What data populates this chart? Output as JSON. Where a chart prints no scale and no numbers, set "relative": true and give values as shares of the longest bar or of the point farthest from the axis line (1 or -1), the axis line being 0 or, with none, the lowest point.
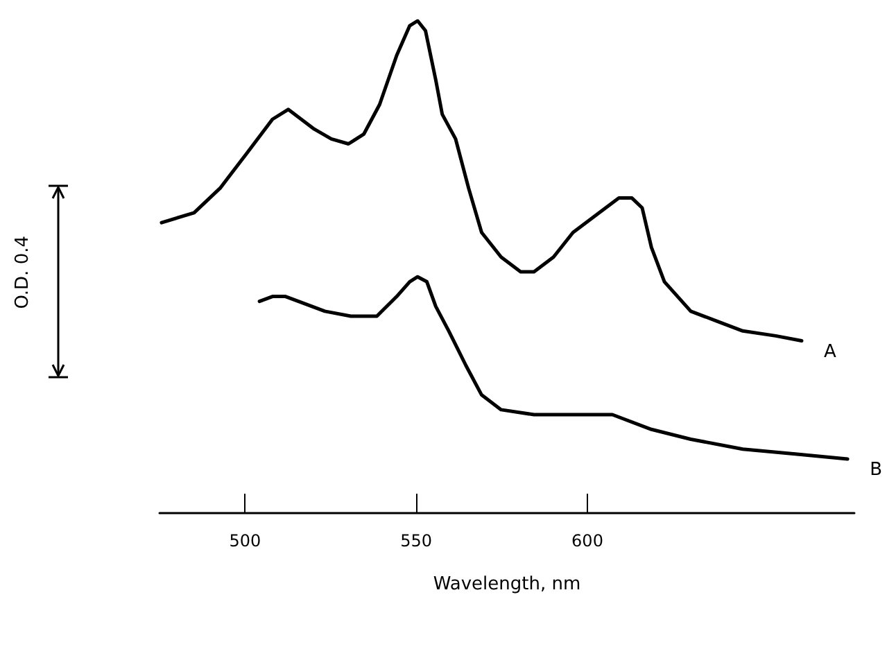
{
  "chart_data": {
    "type": "line",
    "relative": true,
    "xlabel": "Wavelength, nm",
    "xlim": [
      475,
      678
    ],
    "xticks": [
      500,
      550,
      600
    ],
    "grid": false,
    "legend": false,
    "marker": "none",
    "line_style": "solid",
    "annotations": [
      "O.D. 0.4"
    ],
    "series": [
      {
        "name": "A",
        "color": "#000000",
        "x": [
          475.6,
          485.1,
          492.7,
          500.4,
          508.0,
          512.6,
          516.4,
          520.2,
          525.2,
          530.2,
          534.7,
          539.3,
          544.3,
          548.1,
          550.4,
          552.7,
          555.7,
          557.6,
          561.5,
          565.3,
          569.1,
          574.8,
          580.5,
          584.4,
          590.1,
          595.8,
          603.4,
          609.2,
          613.0,
          616.0,
          618.7,
          622.5,
          630.2,
          637.8,
          645.4,
          655.0,
          662.6
        ],
        "values": [
          0.59,
          0.61,
          0.66,
          0.73,
          0.8,
          0.82,
          0.8,
          0.78,
          0.76,
          0.75,
          0.77,
          0.83,
          0.93,
          0.99,
          1.0,
          0.98,
          0.88,
          0.81,
          0.76,
          0.66,
          0.57,
          0.52,
          0.49,
          0.49,
          0.52,
          0.57,
          0.61,
          0.64,
          0.64,
          0.62,
          0.54,
          0.47,
          0.41,
          0.39,
          0.37,
          0.36,
          0.35
        ]
      },
      {
        "name": "B",
        "color": "#000000",
        "x": [
          504.2,
          508.0,
          511.8,
          515.6,
          523.3,
          530.9,
          538.5,
          544.3,
          548.1,
          550.4,
          553.1,
          555.7,
          559.5,
          564.5,
          569.1,
          574.8,
          584.4,
          595.8,
          607.3,
          618.7,
          630.2,
          645.4,
          660.7,
          676.0
        ],
        "values": [
          0.43,
          0.44,
          0.44,
          0.43,
          0.41,
          0.4,
          0.4,
          0.44,
          0.47,
          0.48,
          0.47,
          0.42,
          0.37,
          0.3,
          0.24,
          0.21,
          0.2,
          0.2,
          0.2,
          0.17,
          0.15,
          0.13,
          0.12,
          0.11
        ]
      }
    ]
  }
}
